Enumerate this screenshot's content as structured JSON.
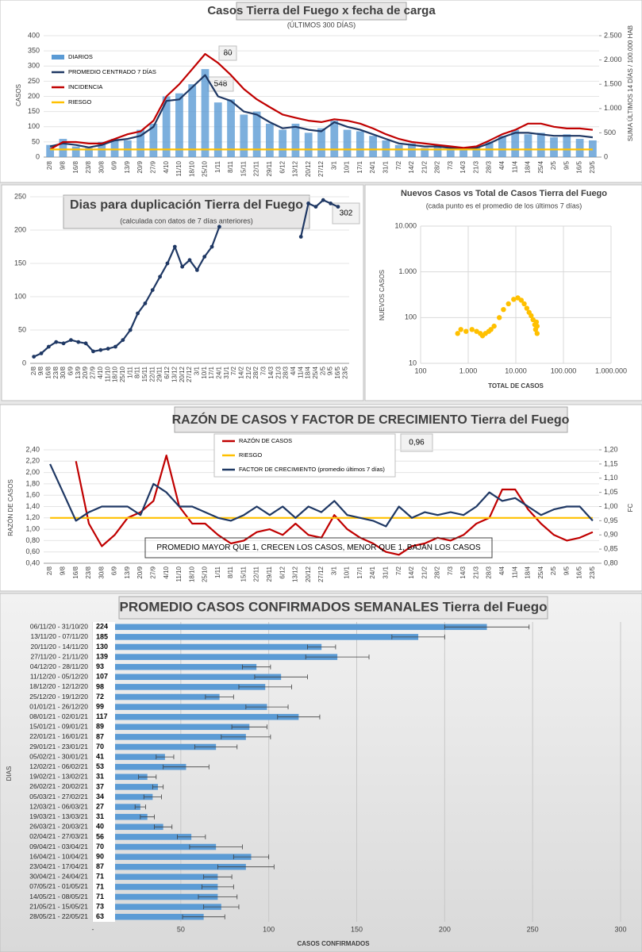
{
  "chart_data": [
    {
      "type": "combo",
      "title": "Casos Tierra del Fuego x fecha de carga",
      "subtitle": "(ÚLTIMOS 300 DÍAS)",
      "ylabel": "CASOS",
      "y2label": "SUMA ÚLTIMOS 14 DÍAS / 100.000 HAB",
      "categories": [
        "2/8",
        "9/8",
        "16/8",
        "23/8",
        "30/8",
        "6/9",
        "13/9",
        "20/9",
        "27/9",
        "4/10",
        "11/10",
        "18/10",
        "25/10",
        "1/11",
        "8/11",
        "15/11",
        "22/11",
        "29/11",
        "6/12",
        "13/12",
        "20/12",
        "27/12",
        "3/1",
        "10/1",
        "17/1",
        "24/1",
        "31/1",
        "7/2",
        "14/2",
        "21/2",
        "28/2",
        "7/3",
        "14/3",
        "21/3",
        "28/3",
        "4/4",
        "11/4",
        "18/4",
        "25/4",
        "2/5",
        "9/5",
        "16/5",
        "23/5"
      ],
      "series": [
        {
          "name": "DIARIOS",
          "color": "#5b9bd5",
          "mark": "bar",
          "values": [
            40,
            60,
            35,
            30,
            50,
            60,
            55,
            90,
            110,
            200,
            210,
            240,
            290,
            180,
            190,
            140,
            150,
            110,
            90,
            110,
            80,
            95,
            120,
            90,
            85,
            70,
            55,
            40,
            45,
            30,
            40,
            28,
            25,
            35,
            50,
            70,
            90,
            75,
            80,
            65,
            75,
            60,
            55
          ]
        },
        {
          "name": "PROMEDIO CENTRADO 7 DÍAS",
          "color": "#1f3864",
          "mark": "line",
          "values": [
            35,
            45,
            40,
            32,
            40,
            55,
            60,
            70,
            100,
            185,
            190,
            230,
            270,
            200,
            185,
            150,
            140,
            115,
            95,
            100,
            90,
            85,
            115,
            100,
            90,
            75,
            60,
            45,
            40,
            35,
            35,
            30,
            28,
            30,
            45,
            65,
            80,
            80,
            75,
            70,
            70,
            70,
            65
          ]
        },
        {
          "name": "INCIDENCIA",
          "color": "#c00000",
          "mark": "line",
          "axis": "y2",
          "values": [
            160,
            310,
            310,
            280,
            280,
            375,
            470,
            530,
            750,
            1250,
            1500,
            1810,
            2125,
            1940,
            1690,
            1400,
            1190,
            1030,
            875,
            810,
            750,
            720,
            780,
            750,
            690,
            590,
            470,
            375,
            310,
            280,
            250,
            220,
            190,
            220,
            340,
            470,
            560,
            690,
            690,
            625,
            590,
            590,
            560
          ]
        },
        {
          "name": "RIESGO",
          "color": "#ffc000",
          "mark": "line",
          "values": [
            25,
            25,
            25,
            25,
            25,
            25,
            25,
            25,
            25,
            25,
            25,
            25,
            25,
            25,
            25,
            25,
            25,
            25,
            25,
            25,
            25,
            25,
            25,
            25,
            25,
            25,
            25,
            25,
            25,
            25,
            25,
            25,
            25,
            25,
            25,
            25,
            25,
            25,
            25,
            25,
            25,
            25,
            25
          ]
        }
      ],
      "ylim": [
        0,
        400
      ],
      "yticks": [
        0,
        50,
        100,
        150,
        200,
        250,
        300,
        350,
        400
      ],
      "y2lim": [
        0,
        2500
      ],
      "y2ticks": [
        0,
        500,
        {
          "value": 1000,
          "label": "1.000"
        },
        {
          "value": 1500,
          "label": "1.500"
        },
        {
          "value": 2000,
          "label": "2.000"
        },
        {
          "value": 2500,
          "label": "2.500"
        }
      ],
      "grid": true,
      "legend": "top-left",
      "annotations": [
        "80",
        "548"
      ]
    },
    {
      "type": "line",
      "title": "Dias para duplicación Tierra del Fuego",
      "subtitle": "(calculada con datos de 7 días anteriores)",
      "categories": [
        "2/8",
        "9/8",
        "16/8",
        "23/8",
        "30/8",
        "6/9",
        "13/9",
        "20/9",
        "27/9",
        "4/10",
        "11/10",
        "18/10",
        "25/10",
        "1/11",
        "8/11",
        "15/11",
        "22/11",
        "29/11",
        "6/12",
        "13/12",
        "20/12",
        "27/12",
        "3/1",
        "10/1",
        "17/1",
        "24/1",
        "31/1",
        "7/2",
        "14/2",
        "21/2",
        "28/2",
        "7/3",
        "14/3",
        "21/3",
        "28/3",
        "4/4",
        "11/4",
        "18/4",
        "25/4",
        "2/5",
        "9/5",
        "16/5",
        "23/5"
      ],
      "series": [
        {
          "color": "#1f3864",
          "mark": "line",
          "markers": true,
          "values": [
            10,
            15,
            25,
            32,
            30,
            35,
            32,
            30,
            18,
            20,
            22,
            25,
            35,
            50,
            75,
            90,
            110,
            130,
            150,
            175,
            145,
            155,
            140,
            160,
            175,
            205,
            null,
            null,
            null,
            null,
            null,
            null,
            null,
            null,
            null,
            null,
            190,
            240,
            235,
            245,
            240,
            235,
            null
          ]
        }
      ],
      "ylim": [
        0,
        250
      ],
      "yticks": [
        0,
        50,
        100,
        150,
        200,
        250
      ],
      "grid": true,
      "annotations": [
        "302"
      ]
    },
    {
      "type": "scatter",
      "title": "Nuevos Casos vs Total de Casos Tierra del Fuego",
      "subtitle": "(cada punto es el promedio de los últimos 7 días)",
      "xlabel": "TOTAL DE CASOS",
      "ylabel": "NUEVOS CASOS",
      "color": "#ffc000",
      "x": [
        600,
        700,
        900,
        1200,
        1500,
        1800,
        2000,
        2300,
        2700,
        3000,
        3500,
        4500,
        5500,
        7000,
        9000,
        11000,
        13000,
        15000,
        17000,
        19000,
        21000,
        23000,
        25000,
        26000,
        27000,
        28000,
        28000
      ],
      "values": [
        45,
        55,
        50,
        55,
        50,
        45,
        40,
        45,
        50,
        55,
        65,
        100,
        150,
        200,
        250,
        270,
        240,
        200,
        160,
        130,
        110,
        90,
        70,
        55,
        80,
        65,
        45
      ],
      "xscale": "log",
      "yscale": "log",
      "xlim": [
        100,
        1000000
      ],
      "xticks": [
        100,
        {
          "value": 1000,
          "label": "1.000"
        },
        {
          "value": 10000,
          "label": "10.000"
        },
        {
          "value": 100000,
          "label": "100.000"
        },
        {
          "value": 1000000,
          "label": "1.000.000"
        }
      ],
      "ylim": [
        10,
        10000
      ],
      "yticks": [
        10,
        100,
        {
          "value": 1000,
          "label": "1.000"
        },
        {
          "value": 10000,
          "label": "10.000"
        }
      ],
      "grid": true
    },
    {
      "type": "line",
      "title": "RAZÓN DE CASOS Y FACTOR DE CRECIMIENTO Tierra del Fuego",
      "ylabel": "RAZÓN DE CASOS",
      "y2label": "FC",
      "categories": [
        "2/8",
        "9/8",
        "16/8",
        "23/8",
        "30/8",
        "6/9",
        "13/9",
        "20/9",
        "27/9",
        "4/10",
        "11/10",
        "18/10",
        "25/10",
        "1/11",
        "8/11",
        "15/11",
        "22/11",
        "29/11",
        "6/12",
        "13/12",
        "20/12",
        "27/12",
        "3/1",
        "10/1",
        "17/1",
        "24/1",
        "31/1",
        "7/2",
        "14/2",
        "21/2",
        "28/2",
        "7/3",
        "14/3",
        "21/3",
        "28/3",
        "4/4",
        "11/4",
        "18/4",
        "25/4",
        "2/5",
        "9/5",
        "16/5",
        "23/5"
      ],
      "series": [
        {
          "name": "RAZÓN DE CASOS",
          "color": "#c00000",
          "mark": "line",
          "values": [
            null,
            null,
            2.2,
            1.1,
            0.7,
            0.9,
            1.2,
            1.3,
            1.5,
            2.3,
            1.4,
            1.1,
            1.1,
            0.9,
            0.75,
            0.8,
            0.95,
            1.0,
            0.9,
            1.1,
            0.9,
            0.85,
            1.25,
            1.0,
            0.85,
            0.75,
            0.6,
            0.55,
            0.7,
            0.75,
            0.85,
            0.8,
            0.9,
            1.1,
            1.2,
            1.7,
            1.7,
            1.35,
            1.1,
            0.9,
            0.8,
            0.85,
            0.95
          ]
        },
        {
          "name": "RIESGO",
          "color": "#ffc000",
          "mark": "line",
          "values": [
            1.2,
            1.2,
            1.2,
            1.2,
            1.2,
            1.2,
            1.2,
            1.2,
            1.2,
            1.2,
            1.2,
            1.2,
            1.2,
            1.2,
            1.2,
            1.2,
            1.2,
            1.2,
            1.2,
            1.2,
            1.2,
            1.2,
            1.2,
            1.2,
            1.2,
            1.2,
            1.2,
            1.2,
            1.2,
            1.2,
            1.2,
            1.2,
            1.2,
            1.2,
            1.2,
            1.2,
            1.2,
            1.2,
            1.2,
            1.2,
            1.2,
            1.2,
            1.2
          ]
        },
        {
          "name": "FACTOR DE CRECIMIENTO (promedio últimos 7 días)",
          "color": "#1f3864",
          "mark": "line",
          "axis": "y2",
          "values": [
            1.15,
            1.05,
            0.95,
            0.98,
            1.0,
            1.0,
            1.0,
            0.97,
            1.08,
            1.05,
            1.0,
            1.0,
            0.98,
            0.96,
            0.95,
            0.97,
            1.0,
            0.97,
            1.0,
            0.96,
            1.0,
            0.98,
            1.02,
            0.97,
            0.96,
            0.95,
            0.93,
            1.0,
            0.96,
            0.98,
            0.97,
            0.98,
            0.97,
            1.0,
            1.05,
            1.02,
            1.03,
            1.0,
            0.97,
            0.99,
            1.0,
            1.0,
            0.95
          ]
        }
      ],
      "ylim": [
        0.4,
        2.4
      ],
      "yticks": [
        {
          "value": 0.4,
          "label": "0,40"
        },
        {
          "value": 0.6,
          "label": "0,60"
        },
        {
          "value": 0.8,
          "label": "0,80"
        },
        {
          "value": 1.0,
          "label": "1,00"
        },
        {
          "value": 1.2,
          "label": "1,20"
        },
        {
          "value": 1.4,
          "label": "1,40"
        },
        {
          "value": 1.6,
          "label": "1,60"
        },
        {
          "value": 1.8,
          "label": "1,80"
        },
        {
          "value": 2.0,
          "label": "2,00"
        },
        {
          "value": 2.2,
          "label": "2,20"
        },
        {
          "value": 2.4,
          "label": "2,40"
        }
      ],
      "y2lim": [
        0.8,
        1.2
      ],
      "y2ticks": [
        {
          "value": 0.8,
          "label": "0,80"
        },
        {
          "value": 0.85,
          "label": "0,85"
        },
        {
          "value": 0.9,
          "label": "0,90"
        },
        {
          "value": 0.95,
          "label": "0,95"
        },
        {
          "value": 1.0,
          "label": "1,00"
        },
        {
          "value": 1.05,
          "label": "1,05"
        },
        {
          "value": 1.1,
          "label": "1,10"
        },
        {
          "value": 1.15,
          "label": "1,15"
        },
        {
          "value": 1.2,
          "label": "1,20"
        }
      ],
      "grid": true,
      "legend": "top-center",
      "annotations": [
        "0,96"
      ],
      "note": "PROMEDIO MAYOR QUE 1, CRECEN LOS CASOS, MENOR QUE 1, BAJAN LOS CASOS"
    },
    {
      "type": "bar",
      "orientation": "horizontal",
      "title": "PROMEDIO CASOS CONFIRMADOS SEMANALES Tierra del Fuego",
      "xlabel": "CASOS CONFIRMADOS",
      "ylabel": "DIAS",
      "color": "#5b9bd5",
      "data_labels": true,
      "categories": [
        "06/11/20 - 31/10/20",
        "13/11/20 - 07/11/20",
        "20/11/20 - 14/11/20",
        "27/11/20 - 21/11/20",
        "04/12/20 - 28/11/20",
        "11/12/20 - 05/12/20",
        "18/12/20 - 12/12/20",
        "25/12/20 - 19/12/20",
        "01/01/21 - 26/12/20",
        "08/01/21 - 02/01/21",
        "15/01/21 - 09/01/21",
        "22/01/21 - 16/01/21",
        "29/01/21 - 23/01/21",
        "05/02/21 - 30/01/21",
        "12/02/21 - 06/02/21",
        "19/02/21 - 13/02/21",
        "26/02/21 - 20/02/21",
        "05/03/21 - 27/02/21",
        "12/03/21 - 06/03/21",
        "19/03/21 - 13/03/21",
        "26/03/21 - 20/03/21",
        "02/04/21 - 27/03/21",
        "09/04/21 - 03/04/21",
        "16/04/21 - 10/04/21",
        "23/04/21 - 17/04/21",
        "30/04/21 - 24/04/21",
        "07/05/21 - 01/05/21",
        "14/05/21 - 08/05/21",
        "21/05/21 - 15/05/21",
        "28/05/21 - 22/05/21"
      ],
      "values": [
        224,
        185,
        130,
        139,
        93,
        107,
        98,
        72,
        99,
        117,
        89,
        87,
        70,
        41,
        53,
        31,
        37,
        34,
        27,
        31,
        40,
        56,
        70,
        90,
        87,
        71,
        71,
        71,
        73,
        63
      ],
      "errors": [
        24,
        15,
        8,
        18,
        8,
        15,
        15,
        8,
        12,
        12,
        10,
        14,
        12,
        5,
        13,
        5,
        3,
        5,
        3,
        4,
        5,
        8,
        15,
        10,
        16,
        8,
        9,
        11,
        10,
        12
      ],
      "xlim": [
        0,
        300
      ],
      "xticks": [
        {
          "value": 0,
          "label": "-"
        },
        50,
        100,
        150,
        200,
        250,
        300
      ],
      "grid": true
    }
  ]
}
